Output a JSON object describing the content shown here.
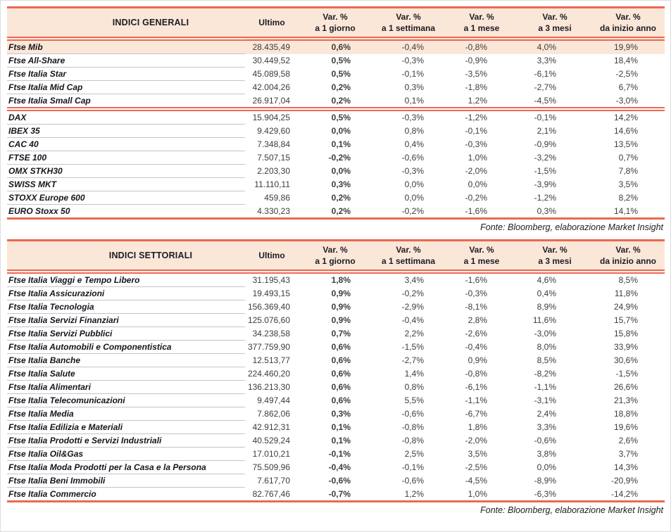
{
  "colors": {
    "accent": "#ec6852",
    "header_bg": "#fbe7d8",
    "highlight_row_bg": "#fbe7d8",
    "row_divider": "#c4c4c4"
  },
  "tables": [
    {
      "title": "INDICI GENERALI",
      "ultimo_header": "Ultimo",
      "var_headers": [
        {
          "line1": "Var. %",
          "line2": "a 1 giorno"
        },
        {
          "line1": "Var. %",
          "line2": "a 1 settimana"
        },
        {
          "line1": "Var. %",
          "line2": "a 1 mese"
        },
        {
          "line1": "Var. %",
          "line2": "a 3 mesi"
        },
        {
          "line1": "Var. %",
          "line2": "da inizio anno"
        }
      ],
      "groups": [
        {
          "rows": [
            {
              "name": "Ftse Mib",
              "ultimo": "28.435,49",
              "vars": [
                "0,6%",
                "-0,4%",
                "-0,8%",
                "4,0%",
                "19,9%"
              ],
              "highlight": true
            },
            {
              "name": "Ftse All-Share",
              "ultimo": "30.449,52",
              "vars": [
                "0,5%",
                "-0,3%",
                "-0,9%",
                "3,3%",
                "18,4%"
              ]
            },
            {
              "name": "Ftse Italia Star",
              "ultimo": "45.089,58",
              "vars": [
                "0,5%",
                "-0,1%",
                "-3,5%",
                "-6,1%",
                "-2,5%"
              ]
            },
            {
              "name": "Ftse Italia Mid Cap",
              "ultimo": "42.004,26",
              "vars": [
                "0,2%",
                "0,3%",
                "-1,8%",
                "-2,7%",
                "6,7%"
              ]
            },
            {
              "name": "Ftse Italia Small Cap",
              "ultimo": "26.917,04",
              "vars": [
                "0,2%",
                "0,1%",
                "1,2%",
                "-4,5%",
                "-3,0%"
              ]
            }
          ]
        },
        {
          "rows": [
            {
              "name": "DAX",
              "ultimo": "15.904,25",
              "vars": [
                "0,5%",
                "-0,3%",
                "-1,2%",
                "-0,1%",
                "14,2%"
              ]
            },
            {
              "name": "IBEX 35",
              "ultimo": "9.429,60",
              "vars": [
                "0,0%",
                "0,8%",
                "-0,1%",
                "2,1%",
                "14,6%"
              ]
            },
            {
              "name": "CAC 40",
              "ultimo": "7.348,84",
              "vars": [
                "0,1%",
                "0,4%",
                "-0,3%",
                "-0,9%",
                "13,5%"
              ]
            },
            {
              "name": "FTSE 100",
              "ultimo": "7.507,15",
              "vars": [
                "-0,2%",
                "-0,6%",
                "1,0%",
                "-3,2%",
                "0,7%"
              ]
            },
            {
              "name": "OMX STKH30",
              "ultimo": "2.203,30",
              "vars": [
                "0,0%",
                "-0,3%",
                "-2,0%",
                "-1,5%",
                "7,8%"
              ]
            },
            {
              "name": "SWISS MKT",
              "ultimo": "11.110,11",
              "vars": [
                "0,3%",
                "0,0%",
                "0,0%",
                "-3,9%",
                "3,5%"
              ]
            },
            {
              "name": "STOXX Europe 600",
              "ultimo": "459,86",
              "vars": [
                "0,2%",
                "0,0%",
                "-0,2%",
                "-1,2%",
                "8,2%"
              ]
            },
            {
              "name": "EURO Stoxx 50",
              "ultimo": "4.330,23",
              "vars": [
                "0,2%",
                "-0,2%",
                "-1,6%",
                "0,3%",
                "14,1%"
              ]
            }
          ]
        }
      ],
      "source": "Fonte: Bloomberg, elaborazione Market Insight"
    },
    {
      "title": "INDICI SETTORIALI",
      "ultimo_header": "Ultimo",
      "var_headers": [
        {
          "line1": "Var. %",
          "line2": "a 1 giorno"
        },
        {
          "line1": "Var. %",
          "line2": "a 1 settimana"
        },
        {
          "line1": "Var. %",
          "line2": "a 1 mese"
        },
        {
          "line1": "Var. %",
          "line2": "a 3 mesi"
        },
        {
          "line1": "Var. %",
          "line2": "da inizio anno"
        }
      ],
      "groups": [
        {
          "rows": [
            {
              "name": "Ftse Italia Viaggi e Tempo Libero",
              "ultimo": "31.195,43",
              "vars": [
                "1,8%",
                "3,4%",
                "-1,6%",
                "4,6%",
                "8,5%"
              ]
            },
            {
              "name": "Ftse Italia Assicurazioni",
              "ultimo": "19.493,15",
              "vars": [
                "0,9%",
                "-0,2%",
                "-0,3%",
                "0,4%",
                "11,8%"
              ]
            },
            {
              "name": "Ftse Italia Tecnologia",
              "ultimo": "156.369,40",
              "vars": [
                "0,9%",
                "-2,9%",
                "-8,1%",
                "8,9%",
                "24,9%"
              ]
            },
            {
              "name": "Ftse Italia Servizi Finanziari",
              "ultimo": "125.076,60",
              "vars": [
                "0,9%",
                "-0,4%",
                "2,8%",
                "11,6%",
                "15,7%"
              ]
            },
            {
              "name": "Ftse Italia Servizi Pubblici",
              "ultimo": "34.238,58",
              "vars": [
                "0,7%",
                "2,2%",
                "-2,6%",
                "-3,0%",
                "15,8%"
              ]
            },
            {
              "name": "Ftse Italia Automobili e Componentistica",
              "ultimo": "377.759,90",
              "vars": [
                "0,6%",
                "-1,5%",
                "-0,4%",
                "8,0%",
                "33,9%"
              ]
            },
            {
              "name": "Ftse Italia Banche",
              "ultimo": "12.513,77",
              "vars": [
                "0,6%",
                "-2,7%",
                "0,9%",
                "8,5%",
                "30,6%"
              ]
            },
            {
              "name": "Ftse Italia Salute",
              "ultimo": "224.460,20",
              "vars": [
                "0,6%",
                "1,4%",
                "-0,8%",
                "-8,2%",
                "-1,5%"
              ]
            },
            {
              "name": "Ftse Italia Alimentari",
              "ultimo": "136.213,30",
              "vars": [
                "0,6%",
                "0,8%",
                "-6,1%",
                "-1,1%",
                "26,6%"
              ]
            },
            {
              "name": "Ftse Italia Telecomunicazioni",
              "ultimo": "9.497,44",
              "vars": [
                "0,6%",
                "5,5%",
                "-1,1%",
                "-3,1%",
                "21,3%"
              ]
            },
            {
              "name": "Ftse Italia Media",
              "ultimo": "7.862,06",
              "vars": [
                "0,3%",
                "-0,6%",
                "-6,7%",
                "2,4%",
                "18,8%"
              ]
            },
            {
              "name": "Ftse Italia Edilizia e Materiali",
              "ultimo": "42.912,31",
              "vars": [
                "0,1%",
                "-0,8%",
                "1,8%",
                "3,3%",
                "19,6%"
              ]
            },
            {
              "name": "Ftse Italia Prodotti e Servizi Industriali",
              "ultimo": "40.529,24",
              "vars": [
                "0,1%",
                "-0,8%",
                "-2,0%",
                "-0,6%",
                "2,6%"
              ]
            },
            {
              "name": "Ftse Italia Oil&Gas",
              "ultimo": "17.010,21",
              "vars": [
                "-0,1%",
                "2,5%",
                "3,5%",
                "3,8%",
                "3,7%"
              ]
            },
            {
              "name": "Ftse Italia Moda Prodotti per la Casa e la Persona",
              "ultimo": "75.509,96",
              "vars": [
                "-0,4%",
                "-0,1%",
                "-2,5%",
                "0,0%",
                "14,3%"
              ]
            },
            {
              "name": "Ftse Italia Beni Immobili",
              "ultimo": "7.617,70",
              "vars": [
                "-0,6%",
                "-0,6%",
                "-4,5%",
                "-8,9%",
                "-20,9%"
              ]
            },
            {
              "name": "Ftse Italia Commercio",
              "ultimo": "82.767,46",
              "vars": [
                "-0,7%",
                "1,2%",
                "1,0%",
                "-6,3%",
                "-14,2%"
              ]
            }
          ]
        }
      ],
      "source": "Fonte: Bloomberg, elaborazione Market Insight"
    }
  ]
}
